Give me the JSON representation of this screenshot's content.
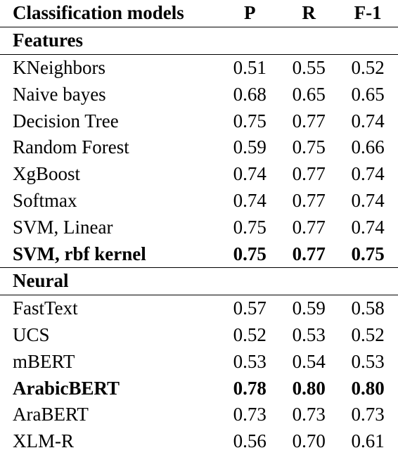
{
  "table": {
    "columns": [
      "Classification models",
      "P",
      "R",
      "F-1"
    ],
    "sections": [
      {
        "title": "Features",
        "rows": [
          {
            "model": "KNeighbors",
            "p": "0.51",
            "r": "0.55",
            "f1": "0.52",
            "bold": false
          },
          {
            "model": "Naive bayes",
            "p": "0.68",
            "r": "0.65",
            "f1": "0.65",
            "bold": false
          },
          {
            "model": "Decision Tree",
            "p": "0.75",
            "r": "0.77",
            "f1": "0.74",
            "bold": false
          },
          {
            "model": "Random Forest",
            "p": "0.59",
            "r": "0.75",
            "f1": "0.66",
            "bold": false
          },
          {
            "model": "XgBoost",
            "p": "0.74",
            "r": "0.77",
            "f1": "0.74",
            "bold": false
          },
          {
            "model": "Softmax",
            "p": "0.74",
            "r": "0.77",
            "f1": "0.74",
            "bold": false
          },
          {
            "model": "SVM, Linear",
            "p": "0.75",
            "r": "0.77",
            "f1": "0.74",
            "bold": false
          },
          {
            "model": "SVM, rbf kernel",
            "p": "0.75",
            "r": "0.77",
            "f1": "0.75",
            "bold": true
          }
        ]
      },
      {
        "title": "Neural",
        "rows": [
          {
            "model": "FastText",
            "p": "0.57",
            "r": "0.59",
            "f1": "0.58",
            "bold": false
          },
          {
            "model": "UCS",
            "p": "0.52",
            "r": "0.53",
            "f1": "0.52",
            "bold": false
          },
          {
            "model": "mBERT",
            "p": "0.53",
            "r": "0.54",
            "f1": "0.53",
            "bold": false
          },
          {
            "model": "ArabicBERT",
            "p": "0.78",
            "r": "0.80",
            "f1": "0.80",
            "bold": true
          },
          {
            "model": "AraBERT",
            "p": "0.73",
            "r": "0.73",
            "f1": "0.73",
            "bold": false
          },
          {
            "model": "XLM-R",
            "p": "0.56",
            "r": "0.70",
            "f1": "0.61",
            "bold": false
          }
        ]
      }
    ]
  }
}
